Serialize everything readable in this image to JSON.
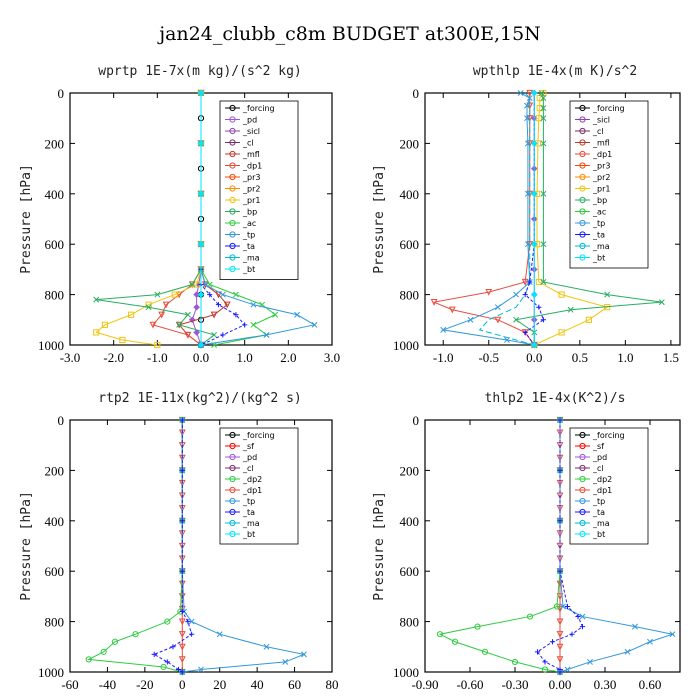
{
  "title": "jan24_clubb_c8m  BUDGET at300E,15N",
  "colors": {
    "forcing": "#000000",
    "pd": "#9b59d6",
    "sicl": "#8e44ad",
    "cl": "#7b2d6a",
    "mfl": "#c0392b",
    "dp1": "#e74c3c",
    "pr3": "#ff4500",
    "pr2": "#ff8c00",
    "pr1": "#f1c40f",
    "bp": "#27ae60",
    "ac": "#2ecc40",
    "tp": "#3498db",
    "ta": "#1a1aff",
    "ma": "#00bcd4",
    "bt": "#00e5ff",
    "sf": "#ff0000",
    "dp2": "#2ecc40"
  },
  "chart_data": [
    {
      "type": "line",
      "title": "wprtp   1E-7x(m kg)/(s^2 kg)",
      "ylabel": "Pressure [hPa]",
      "xlim": [
        -3.0,
        3.0
      ],
      "ylim": [
        1000,
        0
      ],
      "xticks": [
        "-3.0",
        "-2.0",
        "-1.0",
        "0.0",
        "1.0",
        "2.0",
        "3.0"
      ],
      "yticks": [
        "0",
        "200",
        "400",
        "600",
        "800",
        "1000"
      ],
      "xtick_values": [
        -3,
        -2,
        -1,
        0,
        1,
        2,
        3
      ],
      "ytick_values": [
        0,
        200,
        400,
        600,
        800,
        1000
      ],
      "legend": [
        "_forcing",
        "_pd",
        "_sicl",
        "_cl",
        "_mfl",
        "_dp1",
        "_pr3",
        "_pr2",
        "_pr1",
        "_bp",
        "_ac",
        "_tp",
        "_ta",
        "_ma",
        "_bt"
      ],
      "series": [
        {
          "name": "_forcing",
          "color": "#000000",
          "marker": "o",
          "p": [
            0,
            100,
            200,
            300,
            400,
            500,
            600,
            700,
            800,
            900,
            1000
          ],
          "x": [
            0,
            0,
            0,
            0,
            0,
            0,
            0,
            0,
            0,
            0,
            0
          ]
        },
        {
          "name": "_pd",
          "color": "#9b59d6",
          "marker": "d",
          "p": [
            0,
            200,
            400,
            600,
            700,
            760,
            800,
            850,
            900,
            950,
            1000
          ],
          "x": [
            0,
            0,
            0,
            0,
            0,
            -0.05,
            -0.1,
            -0.1,
            -0.2,
            -0.1,
            0
          ]
        },
        {
          "name": "_mfl",
          "color": "#c0392b",
          "marker": "t",
          "p": [
            0,
            200,
            400,
            600,
            700,
            760,
            800,
            840,
            880,
            920,
            960,
            1000
          ],
          "x": [
            0,
            0,
            0,
            0,
            0,
            0.1,
            0.4,
            0.6,
            0.3,
            -0.5,
            -0.3,
            0
          ]
        },
        {
          "name": "_dp1",
          "color": "#e74c3c",
          "marker": "t",
          "p": [
            0,
            200,
            400,
            600,
            700,
            760,
            800,
            840,
            880,
            920,
            960,
            1000
          ],
          "x": [
            0,
            0,
            0,
            0,
            0,
            -0.2,
            -0.5,
            -0.8,
            -0.9,
            -1.1,
            -0.3,
            0
          ]
        },
        {
          "name": "_pr1",
          "color": "#f1c40f",
          "marker": "s",
          "p": [
            0,
            200,
            400,
            600,
            700,
            760,
            800,
            840,
            880,
            920,
            950,
            980,
            1000
          ],
          "x": [
            0,
            0,
            0,
            0,
            0,
            -0.1,
            -0.6,
            -1.2,
            -1.6,
            -2.2,
            -2.4,
            -1.8,
            -1.0
          ]
        },
        {
          "name": "_bp",
          "color": "#27ae60",
          "marker": "x",
          "p": [
            0,
            200,
            400,
            600,
            700,
            760,
            800,
            820,
            850,
            880,
            920,
            960,
            1000
          ],
          "x": [
            0,
            0,
            0,
            0,
            0,
            -0.2,
            -1.0,
            -2.4,
            -1.2,
            -0.3,
            -0.5,
            0.3,
            0
          ]
        },
        {
          "name": "_ac",
          "color": "#2ecc40",
          "marker": "x",
          "p": [
            0,
            200,
            400,
            600,
            700,
            760,
            800,
            840,
            880,
            920,
            960,
            1000
          ],
          "x": [
            0,
            0,
            0,
            0,
            0,
            0.2,
            0.8,
            1.4,
            1.7,
            1.2,
            1.5,
            0.3
          ]
        },
        {
          "name": "_tp",
          "color": "#3498db",
          "marker": "x",
          "p": [
            0,
            200,
            400,
            600,
            700,
            760,
            800,
            840,
            880,
            920,
            960,
            1000
          ],
          "x": [
            0,
            0,
            0,
            0,
            0,
            0.1,
            0.5,
            1.2,
            2.2,
            2.6,
            1.5,
            0
          ]
        },
        {
          "name": "_ta",
          "color": "#1a1aff",
          "marker": "+",
          "p": [
            0,
            200,
            400,
            600,
            700,
            760,
            800,
            840,
            880,
            920,
            960,
            1000
          ],
          "x": [
            0,
            0,
            0,
            0,
            0,
            0,
            0.2,
            0.4,
            0.8,
            1.0,
            0.5,
            0
          ]
        },
        {
          "name": "_bt",
          "color": "#00e5ff",
          "marker": "d",
          "p": [
            0,
            200,
            400,
            600,
            800,
            1000
          ],
          "x": [
            0,
            0,
            0,
            0,
            0,
            0
          ]
        }
      ]
    },
    {
      "type": "line",
      "title": "wpthlp   1E-4x(m K)/s^2",
      "ylabel": "Pressure [hPa]",
      "xlim": [
        -1.2,
        1.6
      ],
      "ylim": [
        1000,
        0
      ],
      "xticks": [
        "-1.0",
        "-0.5",
        "0.0",
        "0.5",
        "1.0",
        "1.5"
      ],
      "yticks": [
        "0",
        "200",
        "400",
        "600",
        "800",
        "1000"
      ],
      "xtick_values": [
        -1.0,
        -0.5,
        0.0,
        0.5,
        1.0,
        1.5
      ],
      "ytick_values": [
        0,
        200,
        400,
        600,
        800,
        1000
      ],
      "legend": [
        "_forcing",
        "_sicl",
        "_cl",
        "_mfl",
        "_dp1",
        "_pr3",
        "_pr2",
        "_pr1",
        "_bp",
        "_ac",
        "_tp",
        "_ta",
        "_ma",
        "_bt"
      ],
      "series": [
        {
          "name": "_forcing",
          "color": "#9b59d6",
          "marker": "d",
          "p": [
            0,
            100,
            200,
            300,
            400,
            500,
            600,
            700,
            800,
            900,
            1000
          ],
          "x": [
            0,
            0,
            0,
            0,
            0,
            0,
            0,
            0,
            0,
            0,
            0
          ]
        },
        {
          "name": "_pr1",
          "color": "#f1c40f",
          "marker": "s",
          "p": [
            0,
            20,
            60,
            100,
            200,
            400,
            600,
            750,
            800,
            850,
            900,
            950,
            1000
          ],
          "x": [
            0.1,
            0.06,
            0.06,
            0.05,
            0.04,
            0.03,
            0.03,
            0.05,
            0.3,
            0.8,
            0.6,
            0.3,
            0
          ]
        },
        {
          "name": "_bp",
          "color": "#27ae60",
          "marker": "x",
          "p": [
            0,
            20,
            60,
            100,
            200,
            400,
            600,
            750,
            800,
            830,
            860,
            900,
            950,
            1000
          ],
          "x": [
            0.08,
            0.1,
            0.1,
            0.1,
            0.1,
            0.1,
            0.1,
            0.1,
            0.8,
            1.4,
            0.4,
            -0.2,
            0,
            0
          ]
        },
        {
          "name": "_dp1",
          "color": "#e74c3c",
          "marker": "t",
          "p": [
            0,
            50,
            100,
            200,
            400,
            600,
            750,
            790,
            830,
            860,
            900,
            950,
            1000
          ],
          "x": [
            -0.05,
            -0.05,
            -0.05,
            -0.05,
            -0.05,
            -0.05,
            -0.1,
            -0.5,
            -1.1,
            -0.9,
            -0.4,
            -0.1,
            0
          ]
        },
        {
          "name": "_tp",
          "color": "#3498db",
          "marker": "x",
          "p": [
            0,
            20,
            50,
            100,
            200,
            400,
            600,
            750,
            800,
            850,
            900,
            940,
            980,
            1000
          ],
          "x": [
            -0.15,
            -0.05,
            -0.08,
            -0.08,
            -0.07,
            -0.07,
            -0.07,
            -0.05,
            -0.2,
            -0.4,
            -0.7,
            -1.0,
            -0.3,
            0
          ]
        },
        {
          "name": "_ma",
          "color": "#00bcd4",
          "marker": "-",
          "p": [
            0,
            20,
            50,
            100,
            200,
            400,
            600,
            750,
            800,
            850,
            900,
            940,
            980,
            1000
          ],
          "x": [
            -0.1,
            -0.05,
            -0.05,
            -0.05,
            -0.05,
            -0.05,
            -0.05,
            -0.05,
            -0.1,
            -0.2,
            -0.5,
            -0.6,
            -0.2,
            0
          ]
        },
        {
          "name": "_ta",
          "color": "#1a1aff",
          "marker": "+",
          "p": [
            0,
            200,
            400,
            600,
            750,
            800,
            850,
            900,
            950,
            1000
          ],
          "x": [
            0,
            0,
            0,
            0,
            -0.05,
            -0.1,
            0.05,
            0.1,
            -0.1,
            0
          ]
        },
        {
          "name": "_bt",
          "color": "#00e5ff",
          "marker": "d",
          "p": [
            0,
            200,
            400,
            600,
            800,
            1000
          ],
          "x": [
            0,
            0,
            0,
            0,
            0,
            0
          ]
        }
      ]
    },
    {
      "type": "line",
      "title": "rtp2   1E-11x(kg^2)/(kg^2 s)",
      "ylabel": "Pressure [hPa]",
      "xlim": [
        -60,
        80
      ],
      "ylim": [
        1000,
        0
      ],
      "xticks": [
        "-60",
        "-40",
        "-20",
        "0",
        "20",
        "40",
        "60",
        "80"
      ],
      "yticks": [
        "0",
        "200",
        "400",
        "600",
        "800",
        "1000"
      ],
      "xtick_values": [
        -60,
        -40,
        -20,
        0,
        20,
        40,
        60,
        80
      ],
      "ytick_values": [
        0,
        200,
        400,
        600,
        800,
        1000
      ],
      "legend": [
        "_forcing",
        "_sf",
        "_pd",
        "_cl",
        "_dp2",
        "_dp1",
        "_tp",
        "_ta",
        "_ma",
        "_bt"
      ],
      "series": [
        {
          "name": "_forcing",
          "color": "#e74c3c",
          "marker": "t",
          "p": [
            0,
            50,
            100,
            150,
            200,
            250,
            300,
            350,
            400,
            450,
            500,
            550,
            600,
            650,
            700,
            750,
            800,
            850,
            900,
            950,
            1000
          ],
          "x": [
            0,
            0,
            0,
            0,
            0,
            0,
            0,
            0,
            0,
            0,
            0,
            0,
            0,
            0,
            0,
            0,
            0,
            0,
            0,
            0,
            0
          ]
        },
        {
          "name": "_dp2",
          "color": "#2ecc40",
          "marker": "o",
          "p": [
            0,
            200,
            400,
            600,
            760,
            800,
            850,
            880,
            920,
            950,
            980,
            1000
          ],
          "x": [
            0,
            0,
            0,
            0,
            -1,
            -8,
            -25,
            -36,
            -42,
            -50,
            -10,
            0
          ]
        },
        {
          "name": "_tp",
          "color": "#3498db",
          "marker": "x",
          "p": [
            0,
            200,
            400,
            600,
            760,
            800,
            850,
            900,
            930,
            960,
            990,
            1000
          ],
          "x": [
            0,
            0,
            0,
            0,
            1,
            5,
            20,
            45,
            65,
            55,
            10,
            0
          ]
        },
        {
          "name": "_ta",
          "color": "#1a1aff",
          "marker": "+",
          "p": [
            0,
            200,
            400,
            600,
            760,
            800,
            850,
            900,
            930,
            960,
            990,
            1000
          ],
          "x": [
            0,
            0,
            0,
            0,
            0,
            3,
            5,
            -5,
            -15,
            -8,
            -2,
            0
          ]
        }
      ]
    },
    {
      "type": "line",
      "title": "thlp2   1E-4x(K^2)/s",
      "ylabel": "Pressure [hPa]",
      "xlim": [
        -0.9,
        0.8
      ],
      "ylim": [
        1000,
        0
      ],
      "xticks": [
        "-0.90",
        "-0.60",
        "-0.30",
        "0.00",
        "0.30",
        "0.60"
      ],
      "yticks": [
        "0",
        "200",
        "400",
        "600",
        "800",
        "1000"
      ],
      "xtick_values": [
        -0.9,
        -0.6,
        -0.3,
        0.0,
        0.3,
        0.6
      ],
      "ytick_values": [
        0,
        200,
        400,
        600,
        800,
        1000
      ],
      "legend": [
        "_forcing",
        "_sf",
        "_pd",
        "_cl",
        "_dp2",
        "_dp1",
        "_tp",
        "_ta",
        "_ma",
        "_bt"
      ],
      "series": [
        {
          "name": "_forcing",
          "color": "#e74c3c",
          "marker": "t",
          "p": [
            0,
            50,
            100,
            150,
            200,
            250,
            300,
            350,
            400,
            450,
            500,
            550,
            600,
            650,
            700,
            750,
            800,
            850,
            900,
            950,
            1000
          ],
          "x": [
            0,
            0,
            0,
            0,
            0,
            0,
            0,
            0,
            0,
            0,
            0,
            0,
            0,
            0,
            0,
            0,
            0,
            0,
            0,
            0,
            0
          ]
        },
        {
          "name": "_dp2",
          "color": "#2ecc40",
          "marker": "o",
          "p": [
            0,
            200,
            400,
            600,
            740,
            780,
            820,
            850,
            880,
            920,
            960,
            990,
            1000
          ],
          "x": [
            0,
            0,
            0,
            0,
            -0.02,
            -0.2,
            -0.55,
            -0.8,
            -0.7,
            -0.5,
            -0.3,
            -0.1,
            0
          ]
        },
        {
          "name": "_tp",
          "color": "#3498db",
          "marker": "x",
          "p": [
            0,
            200,
            400,
            600,
            740,
            780,
            820,
            850,
            880,
            920,
            960,
            990,
            1000
          ],
          "x": [
            0,
            0,
            0,
            0,
            0.02,
            0.15,
            0.5,
            0.75,
            0.6,
            0.45,
            0.2,
            0.05,
            0
          ]
        },
        {
          "name": "_ta",
          "color": "#1a1aff",
          "marker": "+",
          "p": [
            0,
            200,
            400,
            600,
            740,
            780,
            820,
            850,
            880,
            920,
            960,
            990,
            1000
          ],
          "x": [
            0,
            0,
            0,
            0,
            0.05,
            0.12,
            0.15,
            0.08,
            -0.05,
            -0.15,
            -0.1,
            0,
            0
          ]
        }
      ]
    }
  ]
}
